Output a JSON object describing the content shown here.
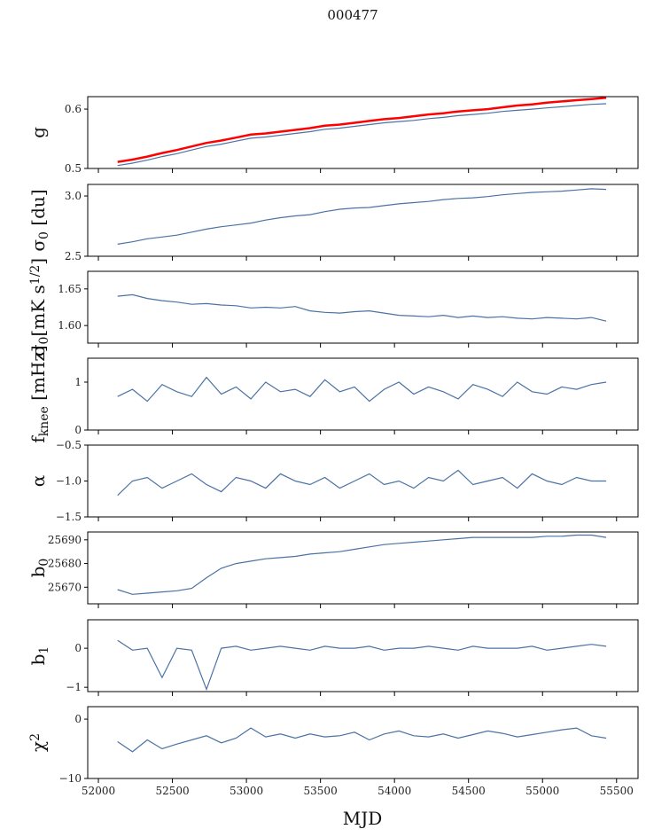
{
  "chart_data": {
    "type": "line",
    "title": "000477",
    "xlabel": "MJD",
    "xlim": [
      51928,
      55645
    ],
    "xticks": [
      52000,
      52500,
      53000,
      53500,
      54000,
      54500,
      55000,
      55500
    ],
    "x": [
      52130,
      52230,
      52330,
      52430,
      52530,
      52630,
      52730,
      52830,
      52930,
      53030,
      53130,
      53230,
      53330,
      53430,
      53530,
      53630,
      53730,
      53830,
      53930,
      54030,
      54130,
      54230,
      54330,
      54430,
      54530,
      54630,
      54730,
      54830,
      54930,
      55030,
      55130,
      55230,
      55330,
      55430
    ],
    "panels": [
      {
        "name": "g",
        "ylabel": [
          {
            "t": "g"
          }
        ],
        "ylim": [
          0.5,
          0.621
        ],
        "yticks": [
          "0.5",
          "0.6"
        ],
        "series": [
          {
            "name": "g",
            "color": "#4c72a4",
            "values": [
              0.505,
              0.509,
              0.514,
              0.52,
              0.525,
              0.531,
              0.537,
              0.541,
              0.546,
              0.551,
              0.553,
              0.556,
              0.559,
              0.562,
              0.566,
              0.568,
              0.571,
              0.574,
              0.577,
              0.579,
              0.581,
              0.584,
              0.586,
              0.589,
              0.591,
              0.593,
              0.596,
              0.598,
              0.6,
              0.602,
              0.604,
              0.606,
              0.608,
              0.609
            ]
          },
          {
            "name": "g_reference",
            "color": "#ff0000",
            "values": [
              0.511,
              0.515,
              0.52,
              0.526,
              0.531,
              0.537,
              0.543,
              0.547,
              0.552,
              0.557,
              0.559,
              0.562,
              0.565,
              0.568,
              0.572,
              0.574,
              0.577,
              0.58,
              0.583,
              0.585,
              0.588,
              0.591,
              0.593,
              0.596,
              0.598,
              0.6,
              0.603,
              0.606,
              0.608,
              0.611,
              0.613,
              0.615,
              0.617,
              0.619
            ]
          }
        ]
      },
      {
        "name": "sigma0-du",
        "ylabel": [
          {
            "t": "σ"
          },
          {
            "t": "0",
            "s": "sub"
          },
          {
            "t": " [du]"
          }
        ],
        "ylim": [
          2.5,
          3.096
        ],
        "yticks": [
          "2.5",
          "3.0"
        ],
        "series": [
          {
            "name": "sigma0_du",
            "color": "#4c72a4",
            "values": [
              2.6,
              2.62,
              2.645,
              2.66,
              2.675,
              2.7,
              2.725,
              2.745,
              2.76,
              2.775,
              2.8,
              2.82,
              2.835,
              2.845,
              2.87,
              2.89,
              2.9,
              2.905,
              2.92,
              2.935,
              2.945,
              2.955,
              2.97,
              2.98,
              2.985,
              2.995,
              3.01,
              3.02,
              3.03,
              3.035,
              3.04,
              3.05,
              3.06,
              3.055
            ]
          }
        ]
      },
      {
        "name": "sigma0-mk",
        "ylabel": [
          {
            "t": "σ"
          },
          {
            "t": "0",
            "s": "sub"
          },
          {
            "t": "[mK s"
          },
          {
            "t": "1/2",
            "s": "sup"
          },
          {
            "t": "]"
          }
        ],
        "ylim": [
          1.576,
          1.674
        ],
        "yticks": [
          "1.60",
          "1.65"
        ],
        "series": [
          {
            "name": "sigma0_mK",
            "color": "#4c72a4",
            "values": [
              1.64,
              1.642,
              1.637,
              1.634,
              1.632,
              1.629,
              1.63,
              1.628,
              1.627,
              1.624,
              1.625,
              1.624,
              1.626,
              1.62,
              1.618,
              1.617,
              1.619,
              1.62,
              1.617,
              1.614,
              1.613,
              1.612,
              1.614,
              1.611,
              1.613,
              1.611,
              1.612,
              1.61,
              1.609,
              1.611,
              1.61,
              1.609,
              1.611,
              1.606
            ]
          }
        ]
      },
      {
        "name": "fknee",
        "ylabel": [
          {
            "t": "f"
          },
          {
            "t": "knee",
            "s": "sub"
          },
          {
            "t": " [mHz]"
          }
        ],
        "ylim": [
          0,
          1.5
        ],
        "yticks": [
          "0",
          "1"
        ],
        "series": [
          {
            "name": "fknee",
            "color": "#4c72a4",
            "values": [
              0.7,
              0.85,
              0.6,
              0.95,
              0.8,
              0.7,
              1.1,
              0.75,
              0.9,
              0.65,
              1.0,
              0.8,
              0.85,
              0.7,
              1.05,
              0.8,
              0.9,
              0.6,
              0.85,
              1.0,
              0.75,
              0.9,
              0.8,
              0.65,
              0.95,
              0.85,
              0.7,
              1.0,
              0.8,
              0.75,
              0.9,
              0.85,
              0.95,
              1.0
            ]
          }
        ]
      },
      {
        "name": "alpha",
        "ylabel": [
          {
            "t": "α"
          }
        ],
        "ylim": [
          -1.5,
          -0.5
        ],
        "yticks": [
          "−1.5",
          "−1.0",
          "−0.5"
        ],
        "series": [
          {
            "name": "alpha",
            "color": "#4c72a4",
            "values": [
              -1.2,
              -1.0,
              -0.95,
              -1.1,
              -1.0,
              -0.9,
              -1.05,
              -1.15,
              -0.95,
              -1.0,
              -1.1,
              -0.9,
              -1.0,
              -1.05,
              -0.95,
              -1.1,
              -1.0,
              -0.9,
              -1.05,
              -1.0,
              -1.1,
              -0.95,
              -1.0,
              -0.85,
              -1.05,
              -1.0,
              -0.95,
              -1.1,
              -0.9,
              -1.0,
              -1.05,
              -0.95,
              -1.0,
              -1.0
            ]
          }
        ]
      },
      {
        "name": "b0",
        "ylabel": [
          {
            "t": "b"
          },
          {
            "t": "0",
            "s": "sub"
          }
        ],
        "ylim": [
          25663,
          25693.3
        ],
        "yticks": [
          "25670",
          "25680",
          "25690"
        ],
        "series": [
          {
            "name": "b0",
            "color": "#4c72a4",
            "values": [
              25669,
              25667,
              25667.5,
              25668,
              25668.5,
              25669.5,
              25674,
              25678,
              25680,
              25681,
              25682,
              25682.5,
              25683,
              25684,
              25684.5,
              25685,
              25686,
              25687,
              25688,
              25688.5,
              25689,
              25689.5,
              25690,
              25690.5,
              25691,
              25691,
              25691,
              25691,
              25691,
              25691.5,
              25691.5,
              25692,
              25692,
              25691
            ]
          }
        ]
      },
      {
        "name": "b1",
        "ylabel": [
          {
            "t": "b"
          },
          {
            "t": "1",
            "s": "sub"
          }
        ],
        "ylim": [
          -1.11,
          0.73
        ],
        "yticks": [
          "−1",
          "0"
        ],
        "series": [
          {
            "name": "b1",
            "color": "#4c72a4",
            "values": [
              0.2,
              -0.05,
              0,
              -0.75,
              0,
              -0.05,
              -1.05,
              0,
              0.05,
              -0.05,
              0,
              0.05,
              0,
              -0.05,
              0.05,
              0,
              0,
              0.05,
              -0.05,
              0,
              0,
              0.05,
              0,
              -0.05,
              0.05,
              0,
              0,
              0,
              0.05,
              -0.05,
              0,
              0.05,
              0.1,
              0.05
            ]
          }
        ]
      },
      {
        "name": "chi2",
        "ylabel": [
          {
            "t": "χ"
          },
          {
            "t": "2",
            "s": "sup"
          }
        ],
        "ylim": [
          -10,
          2.1
        ],
        "yticks": [
          "−10",
          "0"
        ],
        "series": [
          {
            "name": "chi2",
            "color": "#4c72a4",
            "values": [
              -3.8,
              -5.5,
              -3.5,
              -5.0,
              -4.2,
              -3.5,
              -2.8,
              -4.0,
              -3.2,
              -1.5,
              -3.0,
              -2.5,
              -3.2,
              -2.5,
              -3.0,
              -2.8,
              -2.2,
              -3.5,
              -2.5,
              -2.0,
              -2.8,
              -3.0,
              -2.5,
              -3.2,
              -2.6,
              -2.0,
              -2.4,
              -3.0,
              -2.6,
              -2.2,
              -1.8,
              -1.5,
              -2.8,
              -3.2
            ]
          }
        ]
      }
    ]
  }
}
